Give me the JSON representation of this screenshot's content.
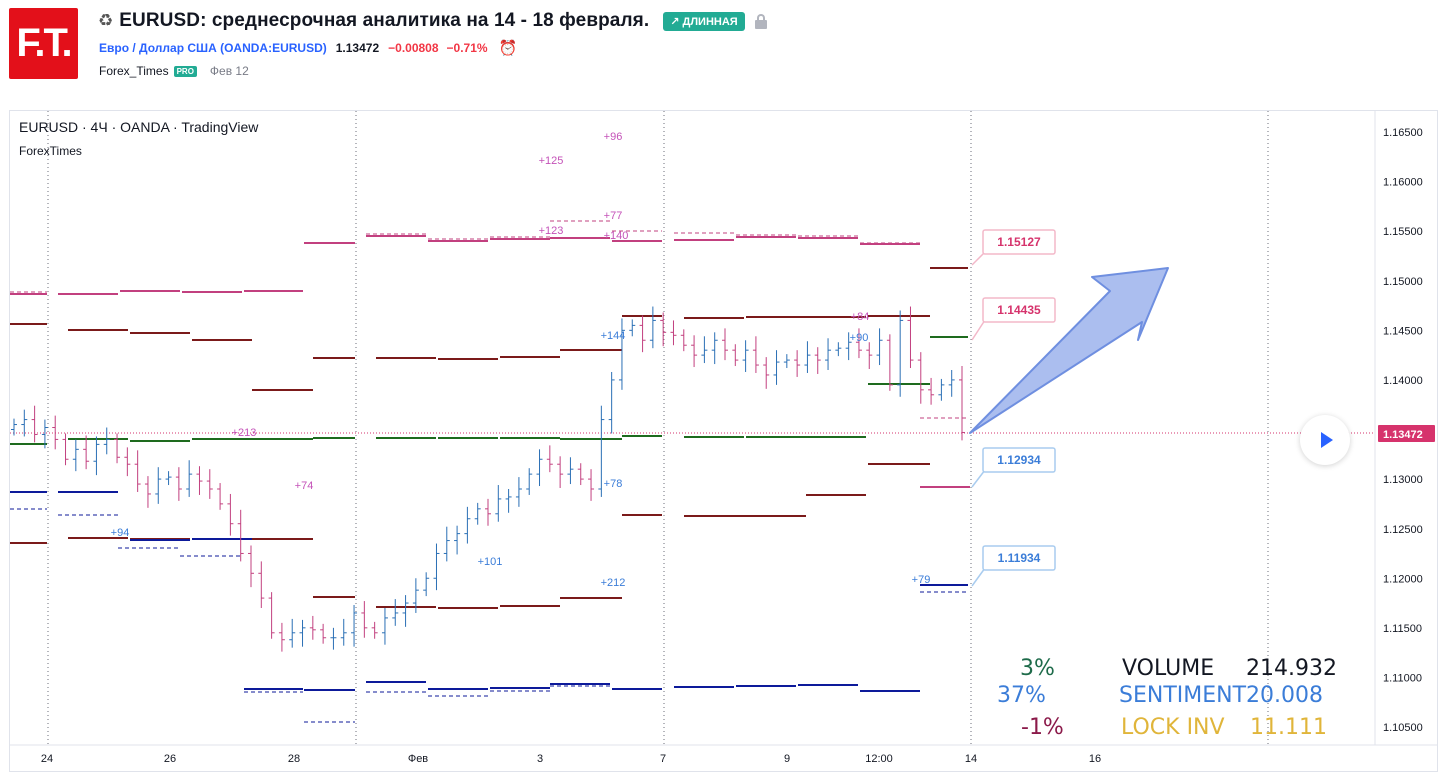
{
  "header": {
    "logo_text": "F.T.",
    "title": "EURUSD: среднесрочная аналитика на 14 - 18 февраля.",
    "badge": "↗ ДЛИННАЯ",
    "symbol": "Евро / Доллар США (OANDA:EURUSD)",
    "price": "1.13472",
    "change": "−0.00808",
    "change_pct": "−0.71%",
    "author": "Forex_Times",
    "pro": "PRO",
    "date": "Фев 12"
  },
  "chart": {
    "info": "EURUSD · 4Ч · OANDA · TradingView",
    "subtitle": "ForexTimes",
    "current_price_label": "1.13472",
    "colors": {
      "up": "#2a6fb5",
      "down": "#c2407f",
      "magenta": "#c2407f",
      "darkred": "#7b1a1a",
      "green": "#1e6b1e",
      "navy": "#0d1a9a",
      "arrow": "#8fa8ea"
    },
    "price_scale": [
      "1.16500",
      "1.16000",
      "1.15500",
      "1.15000",
      "1.14500",
      "1.14000",
      "1.13500",
      "1.13000",
      "1.12500",
      "1.12000",
      "1.11500",
      "1.11000",
      "1.10500"
    ],
    "time_scale": [
      "24",
      "26",
      "28",
      "Фев",
      "3",
      "7",
      "9",
      "12:00",
      "14",
      "16"
    ],
    "callouts": [
      {
        "text": "1.15127",
        "color": "#d6336c"
      },
      {
        "text": "1.14435",
        "color": "#d6336c"
      },
      {
        "text": "1.12934",
        "color": "#3b7dd8"
      },
      {
        "text": "1.11934",
        "color": "#3b7dd8"
      }
    ],
    "pip_labels": [
      {
        "text": "+96",
        "color": "#c452b8"
      },
      {
        "text": "+125",
        "color": "#c452b8"
      },
      {
        "text": "+77",
        "color": "#c452b8"
      },
      {
        "text": "+123",
        "color": "#c452b8"
      },
      {
        "text": "+140",
        "color": "#c452b8"
      },
      {
        "text": "+213",
        "color": "#c452b8"
      },
      {
        "text": "+74",
        "color": "#c452b8"
      },
      {
        "text": "+84",
        "color": "#c452b8"
      },
      {
        "text": "+94",
        "color": "#3b7dd8"
      },
      {
        "text": "+144",
        "color": "#3b7dd8"
      },
      {
        "text": "+90",
        "color": "#3b7dd8"
      },
      {
        "text": "+78",
        "color": "#3b7dd8"
      },
      {
        "text": "+101",
        "color": "#3b7dd8"
      },
      {
        "text": "+212",
        "color": "#3b7dd8"
      },
      {
        "text": "+79",
        "color": "#3b7dd8"
      }
    ]
  },
  "stats": {
    "pct1": "3%",
    "pct2": "37%",
    "pct3": "-1%",
    "volume_label": "VOLUME",
    "volume_value": "214.932",
    "sentiment_label": "SENTIMENT",
    "sentiment_value": "20.008",
    "lock_label": "LOCK INV",
    "lock_value": "11.111"
  }
}
